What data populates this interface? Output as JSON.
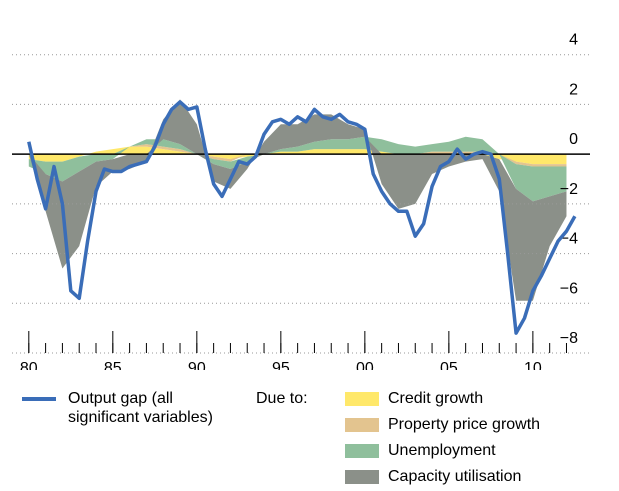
{
  "chart_data": {
    "type": "line",
    "xlim": [
      1979,
      2013.4
    ],
    "ylim": [
      -8,
      6.2
    ],
    "xticks": [
      {
        "value": 1980,
        "label": "80"
      },
      {
        "value": 1985,
        "label": "85"
      },
      {
        "value": 1990,
        "label": "90"
      },
      {
        "value": 1995,
        "label": "95"
      },
      {
        "value": 2000,
        "label": "00"
      },
      {
        "value": 2005,
        "label": "05"
      },
      {
        "value": 2010,
        "label": "10"
      }
    ],
    "x_minor_ticks": [
      1980,
      1981,
      1982,
      1983,
      1984,
      1985,
      1986,
      1987,
      1988,
      1989,
      1990,
      1991,
      1992,
      1993,
      1994,
      1995,
      1996,
      1997,
      1998,
      1999,
      2000,
      2001,
      2002,
      2003,
      2004,
      2005,
      2006,
      2007,
      2008,
      2009,
      2010,
      2011,
      2012
    ],
    "yticks": [
      {
        "value": -8,
        "label": "−8"
      },
      {
        "value": -6,
        "label": "−6"
      },
      {
        "value": -4,
        "label": "−4"
      },
      {
        "value": -2,
        "label": "−2"
      },
      0,
      2,
      4
    ],
    "grid": true,
    "legend_group_label": "Due to:",
    "areas": [
      {
        "name": "Credit growth",
        "color": "#ffe86a",
        "x": [
          1980,
          1981,
          1982,
          1983,
          1984,
          1985,
          1986,
          1987,
          1988,
          1989,
          1990,
          1991,
          1992,
          1993,
          1994,
          1995,
          1996,
          1997,
          1998,
          1999,
          2000,
          2001,
          2002,
          2003,
          2004,
          2005,
          2006,
          2007,
          2008,
          2009,
          2010,
          2011,
          2012
        ],
        "values": [
          -0.2,
          -0.3,
          -0.3,
          -0.1,
          0.1,
          0.2,
          0.3,
          0.3,
          0.2,
          0.1,
          0,
          -0.1,
          -0.2,
          -0.1,
          0,
          0.1,
          0.1,
          0.2,
          0.2,
          0.2,
          0.2,
          0.1,
          0,
          0,
          0,
          0,
          0,
          0,
          -0.2,
          -0.3,
          -0.4,
          -0.4,
          -0.4
        ]
      },
      {
        "name": "Property price growth",
        "color": "#e3c48f",
        "x": [
          1980,
          1981,
          1982,
          1983,
          1984,
          1985,
          1986,
          1987,
          1988,
          1989,
          1990,
          1991,
          1992,
          1993,
          1994,
          1995,
          1996,
          1997,
          1998,
          1999,
          2000,
          2001,
          2002,
          2003,
          2004,
          2005,
          2006,
          2007,
          2008,
          2009,
          2010,
          2011,
          2012
        ],
        "values": [
          0,
          0,
          0,
          0,
          0,
          0,
          0,
          0.1,
          0.1,
          0.1,
          0,
          -0.1,
          -0.1,
          0,
          0,
          0,
          0,
          0,
          0,
          0,
          0,
          0,
          0,
          0,
          0.1,
          0.1,
          0.1,
          0.1,
          0,
          -0.1,
          -0.1,
          -0.1,
          -0.1
        ]
      },
      {
        "name": "Unemployment",
        "color": "#8fbf9c",
        "x": [
          1980,
          1981,
          1982,
          1983,
          1984,
          1985,
          1986,
          1987,
          1988,
          1989,
          1990,
          1991,
          1992,
          1993,
          1994,
          1995,
          1996,
          1997,
          1998,
          1999,
          2000,
          2001,
          2002,
          2003,
          2004,
          2005,
          2006,
          2007,
          2008,
          2009,
          2010,
          2011,
          2012
        ],
        "values": [
          -0.3,
          -0.5,
          -0.8,
          -0.6,
          -0.3,
          -0.2,
          0,
          0.2,
          0.3,
          0.2,
          0,
          -0.2,
          -0.3,
          -0.2,
          0,
          0.1,
          0.2,
          0.3,
          0.4,
          0.4,
          0.5,
          0.5,
          0.4,
          0.3,
          0.3,
          0.4,
          0.6,
          0.5,
          0,
          -1,
          -1.4,
          -1.2,
          -1
        ]
      },
      {
        "name": "Capacity utilisation",
        "color": "#8b9089",
        "x": [
          1980,
          1981,
          1982,
          1983,
          1984,
          1985,
          1986,
          1987,
          1988,
          1989,
          1990,
          1991,
          1992,
          1993,
          1994,
          1995,
          1996,
          1997,
          1998,
          1999,
          2000,
          2001,
          2002,
          2003,
          2004,
          2005,
          2006,
          2007,
          2008,
          2009,
          2010,
          2011,
          2012
        ],
        "values": [
          0,
          -1.5,
          -3.5,
          -3,
          -1,
          -0.5,
          -0.6,
          -0.3,
          0.8,
          1.8,
          1.2,
          -0.7,
          -0.8,
          -0.3,
          0.5,
          1,
          0.9,
          1.1,
          1,
          0.6,
          0.3,
          -1.2,
          -2.2,
          -2,
          -0.8,
          -0.5,
          -0.3,
          -0.2,
          -1.3,
          -4.5,
          -4,
          -2,
          -1
        ]
      }
    ],
    "series": [
      {
        "name": "Output gap (all significant variables)",
        "color": "#3a6db8",
        "x": [
          1980,
          1980.5,
          1981,
          1981.5,
          1982,
          1982.5,
          1983,
          1983.5,
          1984,
          1984.5,
          1985,
          1985.5,
          1986,
          1986.5,
          1987,
          1987.5,
          1988,
          1988.5,
          1989,
          1989.5,
          1990,
          1990.5,
          1991,
          1991.5,
          1992,
          1992.5,
          1993,
          1993.5,
          1994,
          1994.5,
          1995,
          1995.5,
          1996,
          1996.5,
          1997,
          1997.5,
          1998,
          1998.5,
          1999,
          1999.5,
          2000,
          2000.5,
          2001,
          2001.5,
          2002,
          2002.5,
          2003,
          2003.5,
          2004,
          2004.5,
          2005,
          2005.5,
          2006,
          2006.5,
          2007,
          2007.5,
          2008,
          2008.5,
          2009,
          2009.5,
          2010,
          2010.5,
          2011,
          2011.5,
          2012,
          2012.5
        ],
        "values": [
          0.5,
          -1,
          -2.2,
          -0.5,
          -2,
          -5.5,
          -5.8,
          -3.5,
          -1.5,
          -0.6,
          -0.7,
          -0.7,
          -0.5,
          -0.4,
          -0.3,
          0.3,
          1.2,
          1.8,
          2.1,
          1.8,
          1.9,
          0.2,
          -1.2,
          -1.7,
          -1,
          -0.3,
          -0.4,
          -0.1,
          0.8,
          1.3,
          1.4,
          1.2,
          1.5,
          1.3,
          1.8,
          1.5,
          1.4,
          1.6,
          1.3,
          1.2,
          1,
          -0.8,
          -1.5,
          -2,
          -2.3,
          -2.3,
          -3.3,
          -2.8,
          -1.3,
          -0.5,
          -0.3,
          0.2,
          -0.2,
          0,
          0.1,
          0,
          -1,
          -4,
          -7.2,
          -6.6,
          -5.5,
          -4.9,
          -4.2,
          -3.5,
          -3.1,
          -2.5
        ]
      }
    ]
  }
}
